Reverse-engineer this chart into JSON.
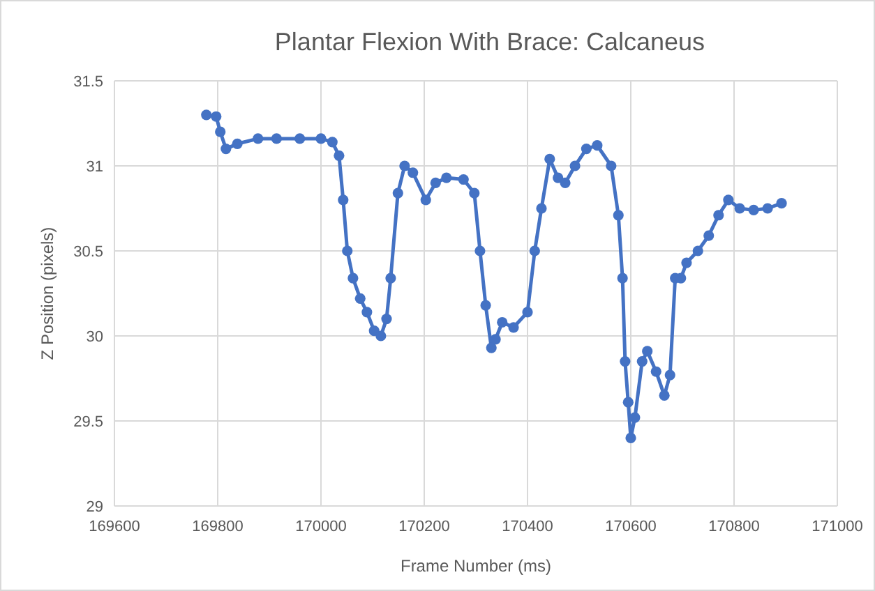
{
  "chart_data": {
    "type": "line",
    "title": "Plantar Flexion With Brace: Calcaneus",
    "xlabel": "Frame Number  (ms)",
    "ylabel": "Z Position (pixels)",
    "xlim": [
      169600,
      171000
    ],
    "xticks": [
      169600,
      169800,
      170000,
      170200,
      170400,
      170600,
      170800,
      171000
    ],
    "ylim": [
      29,
      31.5
    ],
    "yticks": [
      29,
      29.5,
      30,
      30.5,
      31,
      31.5
    ],
    "grid": true,
    "marker": "circle",
    "line_style": "solid",
    "series": [
      {
        "color": "#4472c4",
        "x": [
          169778,
          169797,
          169805,
          169816,
          169838,
          169878,
          169914,
          169959,
          170000,
          170022,
          170035,
          170043,
          170051,
          170062,
          170076,
          170089,
          170103,
          170116,
          170127,
          170135,
          170149,
          170162,
          170178,
          170203,
          170222,
          170243,
          170276,
          170297,
          170308,
          170319,
          170330,
          170338,
          170351,
          170373,
          170400,
          170414,
          170427,
          170443,
          170459,
          170473,
          170492,
          170514,
          170535,
          170562,
          170576,
          170584,
          170589,
          170595,
          170600,
          170608,
          170622,
          170632,
          170649,
          170665,
          170676,
          170686,
          170697,
          170708,
          170730,
          170751,
          170770,
          170789,
          170811,
          170838,
          170865,
          170892
        ],
        "values": [
          31.3,
          31.29,
          31.2,
          31.1,
          31.13,
          31.16,
          31.16,
          31.16,
          31.16,
          31.14,
          31.06,
          30.8,
          30.5,
          30.34,
          30.22,
          30.14,
          30.03,
          30.0,
          30.1,
          30.34,
          30.84,
          31.0,
          30.96,
          30.8,
          30.9,
          30.93,
          30.92,
          30.84,
          30.5,
          30.18,
          29.93,
          29.98,
          30.08,
          30.05,
          30.14,
          30.5,
          30.75,
          31.04,
          30.93,
          30.9,
          31.0,
          31.1,
          31.12,
          31.0,
          30.71,
          30.34,
          29.85,
          29.61,
          29.4,
          29.52,
          29.85,
          29.91,
          29.79,
          29.65,
          29.77,
          30.34,
          30.34,
          30.43,
          30.5,
          30.59,
          30.71,
          30.8,
          30.75,
          30.74,
          30.75,
          30.78
        ]
      }
    ]
  }
}
